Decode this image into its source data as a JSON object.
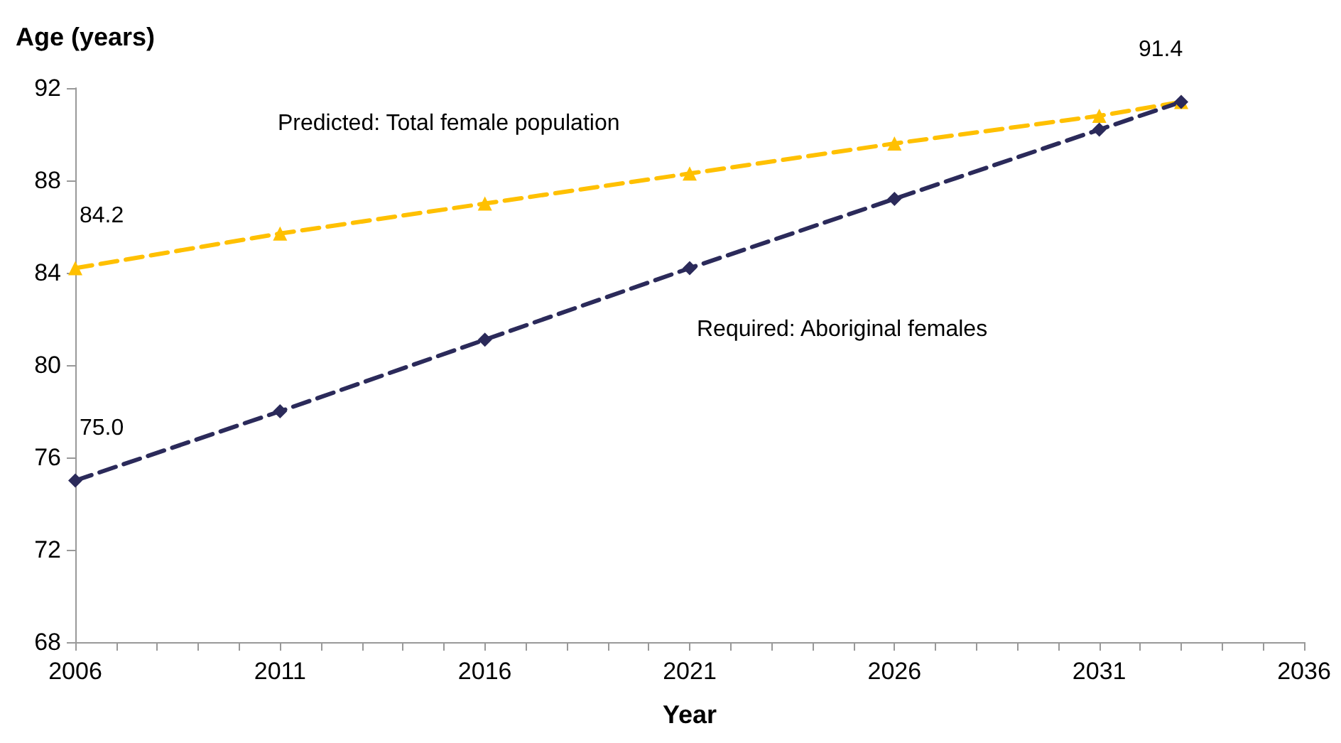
{
  "chart_data": {
    "type": "line",
    "ylabel": "Age (years)",
    "xlabel": "Year",
    "x": [
      2006,
      2011,
      2016,
      2021,
      2026,
      2031,
      2033
    ],
    "xlim": [
      2006,
      2036
    ],
    "xticks": [
      2006,
      2011,
      2016,
      2021,
      2026,
      2031,
      2036
    ],
    "ylim": [
      68,
      92
    ],
    "yticks": [
      68,
      72,
      76,
      80,
      84,
      88,
      92
    ],
    "grid": false,
    "legend": false,
    "line_style": "dashed",
    "series": [
      {
        "name": "Predicted: Total female population",
        "color": "#ffc000",
        "marker": "triangle",
        "values": [
          84.2,
          85.7,
          87.0,
          88.3,
          89.6,
          90.8,
          91.4
        ],
        "value_labels": [
          "84.2",
          null,
          null,
          null,
          null,
          null,
          "91.4"
        ]
      },
      {
        "name": "Required: Aboriginal females",
        "color": "#2b2a5a",
        "marker": "diamond",
        "values": [
          75.0,
          78.0,
          81.1,
          84.2,
          87.2,
          90.2,
          91.4
        ],
        "value_labels": [
          "75.0",
          null,
          null,
          null,
          null,
          null,
          null
        ]
      }
    ]
  }
}
